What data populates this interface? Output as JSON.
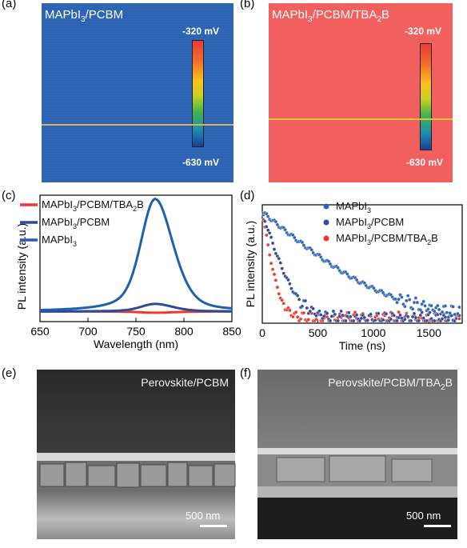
{
  "panel_a": {
    "label": "(a)",
    "title_prefix": "MAPbI",
    "title_sub": "3",
    "title_suffix": "/PCBM",
    "cb_top": "-320 mV",
    "cb_bottom": "-630 mV",
    "bg_color": "#2f66b6"
  },
  "panel_b": {
    "label": "(b)",
    "title_prefix": "MAPbI",
    "title_sub1": "3",
    "title_mid": "/PCBM/TBA",
    "title_sub2": "2",
    "title_suffix": "B",
    "cb_top": "-320 mV",
    "cb_bottom": "-630 mV",
    "bg_color": "#f25f5f"
  },
  "panel_c": {
    "label": "(c)",
    "legend": [
      {
        "pre": "MAPbI",
        "sub1": "3",
        "mid": "/PCBM/TBA",
        "sub2": "2",
        "post": "B",
        "color": "#ef3a2b"
      },
      {
        "pre": "MAPbI",
        "sub1": "3",
        "mid": "/PCBM",
        "sub2": "",
        "post": "",
        "color": "#2b4a9c"
      },
      {
        "pre": "MAPbI",
        "sub1": "3",
        "mid": "",
        "sub2": "",
        "post": "",
        "color": "#1f5fae"
      }
    ]
  },
  "panel_d": {
    "label": "(d)",
    "legend": [
      {
        "pre": "MAPbI",
        "sub1": "3",
        "mid": "",
        "sub2": "",
        "post": "",
        "color": "#2f67b5"
      },
      {
        "pre": "MAPbI",
        "sub1": "3",
        "mid": "/PCBM",
        "sub2": "",
        "post": "",
        "color": "#2f4f9e"
      },
      {
        "pre": "MAPbI",
        "sub1": "3",
        "mid": "/PCBM/TBA",
        "sub2": "2",
        "post": "B",
        "color": "#ef3a2b"
      }
    ]
  },
  "panel_e": {
    "label": "(e)",
    "title": "Perovskite/PCBM",
    "scale": "500 nm"
  },
  "panel_f": {
    "label": "(f)",
    "title_pre": "Perovskite/PCBM/TBA",
    "title_sub": "2",
    "title_post": "B",
    "scale": "500 nm"
  },
  "chart_data": [
    {
      "type": "line",
      "panel": "c",
      "xlabel": "Wavelength (nm)",
      "ylabel": "PL intensity (a.u.)",
      "xlim": [
        650,
        850
      ],
      "xticks": [
        650,
        700,
        750,
        800,
        850
      ],
      "ylim": [
        0,
        1.0
      ],
      "series": [
        {
          "name": "MAPbI3",
          "peak_x": 770,
          "peak_y": 0.97,
          "color": "#1f5fae"
        },
        {
          "name": "MAPbI3/PCBM",
          "peak_x": 770,
          "peak_y": 0.14,
          "color": "#2b4a9c"
        },
        {
          "name": "MAPbI3/PCBM/TBA2B",
          "peak_x": 770,
          "peak_y": 0.07,
          "color": "#ef3a2b"
        }
      ]
    },
    {
      "type": "scatter",
      "panel": "d",
      "xlabel": "Time (ns)",
      "ylabel": "PL intensity (a.u.)",
      "xlim": [
        0,
        1800
      ],
      "xticks": [
        0,
        500,
        1000,
        1500
      ],
      "series": [
        {
          "name": "MAPbI3",
          "tau_ns": 400,
          "floor": 0.07,
          "color": "#2f67b5"
        },
        {
          "name": "MAPbI3/PCBM",
          "tau_ns": 110,
          "floor": 0.08,
          "color": "#2f4f9e"
        },
        {
          "name": "MAPbI3/PCBM/TBA2B",
          "tau_ns": 60,
          "floor": 0.1,
          "color": "#ef3a2b"
        }
      ]
    }
  ]
}
